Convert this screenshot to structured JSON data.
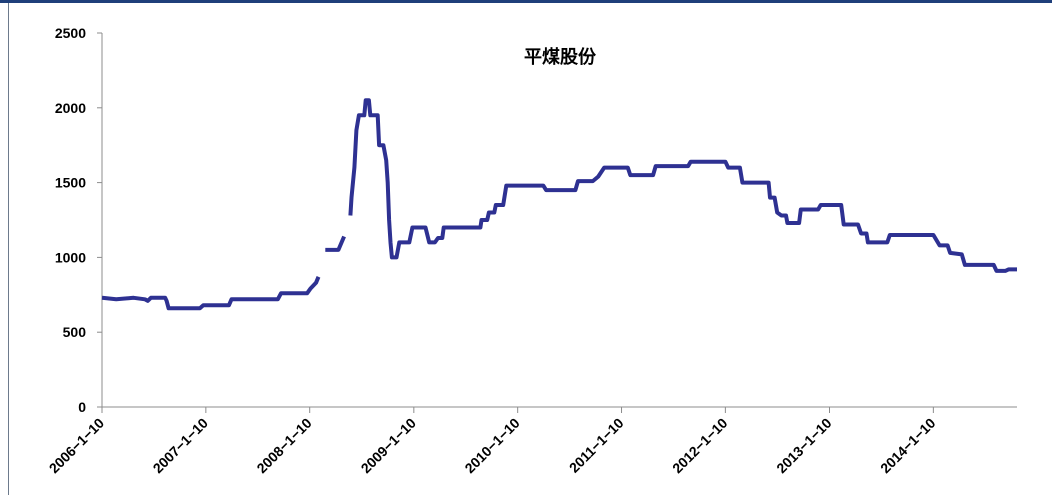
{
  "chart_data": {
    "type": "line",
    "title": "平煤股份",
    "xlabel": "",
    "ylabel": "",
    "ylim": [
      0,
      2500
    ],
    "yticks": [
      0,
      500,
      1000,
      1500,
      2000,
      2500
    ],
    "xlim": [
      "2006-01-10",
      "2014-10-31"
    ],
    "xticks": [
      "2006-1-10",
      "2007-1-10",
      "2008-1-10",
      "2009-1-10",
      "2010-1-10",
      "2011-1-10",
      "2012-1-10",
      "2013-1-10",
      "2014-1-10"
    ],
    "grid": false,
    "legend": "none",
    "series": [
      {
        "color": "#2e3192",
        "segments": [
          [
            [
              "2006-01-10",
              730
            ],
            [
              "2006-03-01",
              720
            ],
            [
              "2006-05-01",
              730
            ],
            [
              "2006-06-10",
              720
            ],
            [
              "2006-06-20",
              710
            ],
            [
              "2006-07-01",
              730
            ],
            [
              "2006-08-20",
              730
            ],
            [
              "2006-08-25",
              710
            ],
            [
              "2006-09-01",
              660
            ],
            [
              "2006-12-20",
              660
            ],
            [
              "2007-01-01",
              680
            ],
            [
              "2007-04-01",
              680
            ],
            [
              "2007-04-10",
              720
            ],
            [
              "2007-09-20",
              720
            ],
            [
              "2007-10-01",
              760
            ],
            [
              "2008-01-01",
              760
            ],
            [
              "2008-01-12",
              790
            ],
            [
              "2008-02-01",
              830
            ],
            [
              "2008-02-10",
              870
            ]
          ],
          [
            [
              "2008-03-05",
              1050
            ],
            [
              "2008-04-20",
              1050
            ],
            [
              "2008-05-01",
              1100
            ],
            [
              "2008-05-10",
              1140
            ]
          ],
          [
            [
              "2008-06-01",
              1280
            ],
            [
              "2008-06-05",
              1400
            ],
            [
              "2008-06-15",
              1600
            ],
            [
              "2008-06-22",
              1850
            ],
            [
              "2008-07-01",
              1950
            ],
            [
              "2008-07-20",
              1950
            ],
            [
              "2008-07-25",
              2050
            ],
            [
              "2008-08-05",
              2050
            ],
            [
              "2008-08-10",
              1950
            ],
            [
              "2008-09-05",
              1950
            ],
            [
              "2008-09-10",
              1750
            ],
            [
              "2008-09-25",
              1750
            ],
            [
              "2008-10-05",
              1650
            ],
            [
              "2008-10-10",
              1500
            ],
            [
              "2008-10-15",
              1250
            ],
            [
              "2008-10-20",
              1100
            ],
            [
              "2008-10-25",
              1000
            ],
            [
              "2008-11-10",
              1000
            ],
            [
              "2008-11-20",
              1100
            ],
            [
              "2008-12-25",
              1100
            ],
            [
              "2009-01-05",
              1200
            ],
            [
              "2009-02-20",
              1200
            ],
            [
              "2009-03-05",
              1100
            ],
            [
              "2009-03-25",
              1100
            ],
            [
              "2009-04-05",
              1130
            ],
            [
              "2009-04-20",
              1130
            ],
            [
              "2009-04-25",
              1200
            ],
            [
              "2009-09-01",
              1200
            ],
            [
              "2009-09-05",
              1250
            ],
            [
              "2009-09-25",
              1250
            ],
            [
              "2009-10-01",
              1300
            ],
            [
              "2009-10-20",
              1300
            ],
            [
              "2009-10-25",
              1350
            ],
            [
              "2009-11-20",
              1350
            ],
            [
              "2009-12-01",
              1480
            ],
            [
              "2010-04-10",
              1480
            ],
            [
              "2010-04-20",
              1450
            ],
            [
              "2010-08-01",
              1450
            ],
            [
              "2010-08-10",
              1510
            ],
            [
              "2010-10-01",
              1510
            ],
            [
              "2010-10-20",
              1540
            ],
            [
              "2010-11-10",
              1600
            ],
            [
              "2011-02-01",
              1600
            ],
            [
              "2011-02-10",
              1550
            ],
            [
              "2011-05-01",
              1550
            ],
            [
              "2011-05-10",
              1610
            ],
            [
              "2011-09-01",
              1610
            ],
            [
              "2011-09-10",
              1640
            ],
            [
              "2012-01-10",
              1640
            ],
            [
              "2012-01-20",
              1600
            ],
            [
              "2012-03-01",
              1600
            ],
            [
              "2012-03-10",
              1500
            ],
            [
              "2012-06-10",
              1500
            ],
            [
              "2012-06-15",
              1400
            ],
            [
              "2012-07-01",
              1400
            ],
            [
              "2012-07-10",
              1300
            ],
            [
              "2012-07-25",
              1280
            ],
            [
              "2012-08-10",
              1280
            ],
            [
              "2012-08-15",
              1230
            ],
            [
              "2012-09-25",
              1230
            ],
            [
              "2012-10-01",
              1320
            ],
            [
              "2012-12-01",
              1320
            ],
            [
              "2012-12-10",
              1350
            ],
            [
              "2013-02-20",
              1350
            ],
            [
              "2013-03-01",
              1220
            ],
            [
              "2013-04-20",
              1220
            ],
            [
              "2013-05-01",
              1160
            ],
            [
              "2013-05-20",
              1160
            ],
            [
              "2013-05-25",
              1100
            ],
            [
              "2013-08-01",
              1100
            ],
            [
              "2013-08-10",
              1150
            ],
            [
              "2013-12-20",
              1150
            ],
            [
              "2014-01-10",
              1150
            ],
            [
              "2014-02-01",
              1080
            ],
            [
              "2014-03-01",
              1080
            ],
            [
              "2014-03-10",
              1030
            ],
            [
              "2014-04-20",
              1020
            ],
            [
              "2014-05-01",
              950
            ],
            [
              "2014-08-10",
              950
            ],
            [
              "2014-08-20",
              910
            ],
            [
              "2014-09-20",
              910
            ],
            [
              "2014-10-01",
              920
            ],
            [
              "2014-10-31",
              920
            ]
          ]
        ]
      }
    ]
  }
}
